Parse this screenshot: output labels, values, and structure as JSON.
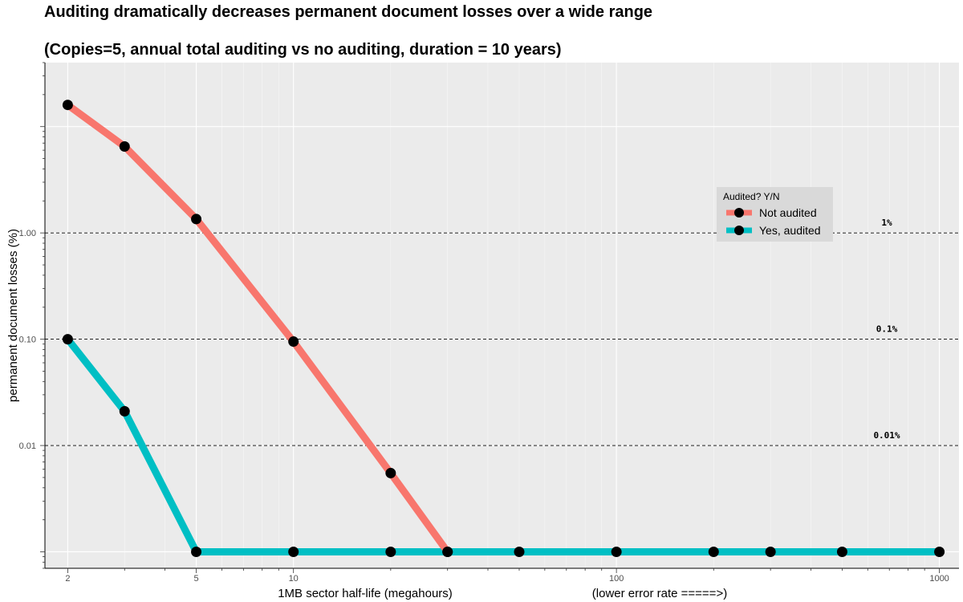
{
  "chart_data": {
    "type": "line",
    "title": "Auditing dramatically decreases permanent document losses over a wide range",
    "subtitle": "(Copies=5, annual total auditing vs no auditing, duration = 10 years)",
    "xlabel": "1MB sector half-life (megahours)",
    "xlabel_right": "(lower error rate =====>)",
    "ylabel": "permanent document losses (%)",
    "x_scale": "log",
    "y_scale": "log",
    "xlim": [
      1.7,
      1150
    ],
    "ylim": [
      0.0007,
      40
    ],
    "x_ticks": [
      2,
      5,
      10,
      100,
      1000
    ],
    "x_tick_labels": [
      "2",
      "5",
      "10",
      "100",
      "1000"
    ],
    "y_ticks": [
      0.01,
      0.1,
      1
    ],
    "y_tick_labels": [
      "0.01",
      "0.10",
      "1.00"
    ],
    "grid": true,
    "legend": {
      "title": "Audited? Y/N",
      "position": "right",
      "entries": [
        "Not audited",
        "Yes, audited"
      ]
    },
    "reference_lines": [
      {
        "y": 1,
        "label": "1%"
      },
      {
        "y": 0.1,
        "label": "0.1%"
      },
      {
        "y": 0.01,
        "label": "0.01%"
      }
    ],
    "floor_value": 0.001,
    "series": [
      {
        "name": "Not audited",
        "color": "#f8766d",
        "x": [
          2,
          3,
          5,
          10,
          20,
          30
        ],
        "y": [
          16,
          6.5,
          1.35,
          0.095,
          0.0055,
          0.001
        ]
      },
      {
        "name": "Yes, audited",
        "color": "#00bfc4",
        "x": [
          2,
          3,
          5,
          10,
          20,
          30,
          50,
          100,
          200,
          300,
          500,
          1000
        ],
        "y": [
          0.1,
          0.021,
          0.001,
          0.001,
          0.001,
          0.001,
          0.001,
          0.001,
          0.001,
          0.001,
          0.001,
          0.001
        ]
      }
    ]
  }
}
